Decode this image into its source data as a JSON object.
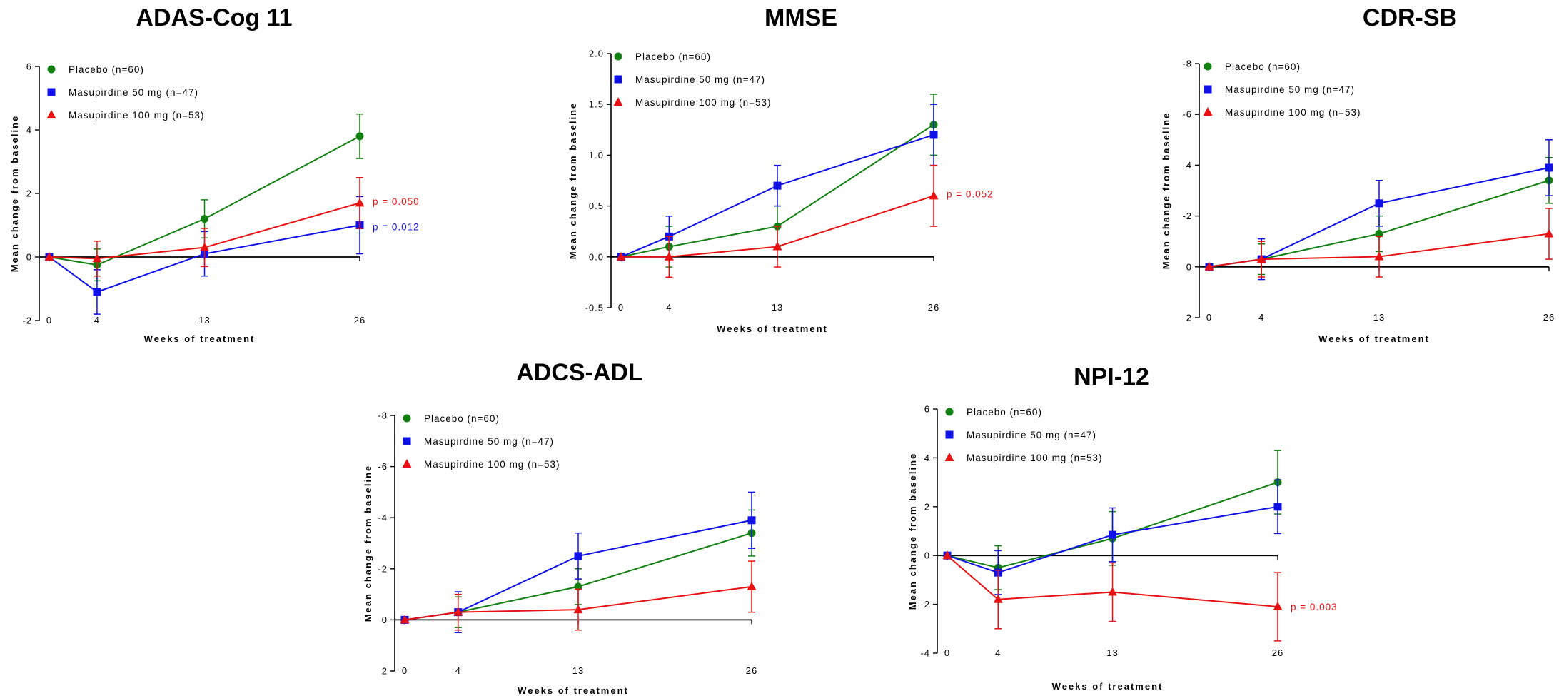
{
  "chart_data": [
    {
      "type": "line",
      "title": "ADAS-Cog 11",
      "xlabel": "Weeks of treatment",
      "ylabel": "Mean change from baseline",
      "x": [
        0,
        4,
        13,
        26
      ],
      "xticks": [
        "0",
        "4",
        "13",
        "26"
      ],
      "ylim": [
        -2,
        6
      ],
      "yticks": [
        "6",
        "4",
        "2",
        "0",
        "-2"
      ],
      "y_inverted": false,
      "legend_position": "top-left",
      "series": [
        {
          "name": "Placebo (n=60)",
          "color": "#118011",
          "marker": "circle",
          "values": [
            0,
            -0.25,
            1.2,
            3.8
          ],
          "err": [
            0,
            0.5,
            0.6,
            0.7
          ]
        },
        {
          "name": "Masupirdine 50 mg (n=47)",
          "color": "#1010e8",
          "marker": "square",
          "values": [
            0,
            -1.1,
            0.1,
            1.0
          ],
          "err": [
            0,
            0.7,
            0.7,
            0.9
          ]
        },
        {
          "name": "Masupirdine 100 mg (n=53)",
          "color": "#e81010",
          "marker": "triangle",
          "values": [
            0,
            -0.05,
            0.3,
            1.7
          ],
          "err": [
            0,
            0.55,
            0.6,
            0.8
          ]
        }
      ],
      "annotations": [
        {
          "text": "p = 0.050",
          "color": "#e81010",
          "x": 26,
          "y": 1.75
        },
        {
          "text": "p = 0.012",
          "color": "#1010e8",
          "x": 26,
          "y": 0.95
        }
      ]
    },
    {
      "type": "line",
      "title": "MMSE",
      "xlabel": "Weeks of treatment",
      "ylabel": "Mean change from baseline",
      "x": [
        0,
        4,
        13,
        26
      ],
      "xticks": [
        "0",
        "4",
        "13",
        "26"
      ],
      "ylim": [
        -0.5,
        2.0
      ],
      "yticks": [
        "2.0",
        "1.5",
        "1.0",
        "0.5",
        "0.0",
        "-0.5"
      ],
      "y_inverted": false,
      "legend_position": "top-left",
      "series": [
        {
          "name": "Placebo (n=60)",
          "color": "#118011",
          "marker": "circle",
          "values": [
            0,
            0.1,
            0.3,
            1.3
          ],
          "err": [
            0,
            0.2,
            0.2,
            0.3
          ]
        },
        {
          "name": "Masupirdine 50 mg (n=47)",
          "color": "#1010e8",
          "marker": "square",
          "values": [
            0,
            0.2,
            0.7,
            1.2
          ],
          "err": [
            0,
            0.2,
            0.2,
            0.3
          ]
        },
        {
          "name": "Masupirdine 100 mg (n=53)",
          "color": "#e81010",
          "marker": "triangle",
          "values": [
            0,
            0.0,
            0.1,
            0.6
          ],
          "err": [
            0,
            0.2,
            0.2,
            0.3
          ]
        }
      ],
      "annotations": [
        {
          "text": "p = 0.052",
          "color": "#e81010",
          "x": 26,
          "y": 0.62
        }
      ]
    },
    {
      "type": "line",
      "title": "CDR-SB",
      "xlabel": "Weeks of treatment",
      "ylabel": "Mean change from baseline",
      "x": [
        0,
        4,
        13,
        26
      ],
      "xticks": [
        "0",
        "4",
        "13",
        "26"
      ],
      "ylim": [
        2,
        -8
      ],
      "yticks": [
        "-8",
        "-6",
        "-4",
        "-2",
        "0",
        "2"
      ],
      "y_inverted": true,
      "legend_position": "top-left",
      "series": [
        {
          "name": "Placebo (n=60)",
          "color": "#118011",
          "marker": "circle",
          "values": [
            0,
            -0.3,
            -1.3,
            -3.4
          ],
          "err": [
            0,
            0.6,
            0.7,
            0.9
          ]
        },
        {
          "name": "Masupirdine 50 mg (n=47)",
          "color": "#1010e8",
          "marker": "square",
          "values": [
            0,
            -0.3,
            -2.5,
            -3.9
          ],
          "err": [
            0,
            0.8,
            0.9,
            1.1
          ]
        },
        {
          "name": "Masupirdine 100 mg (n=53)",
          "color": "#e81010",
          "marker": "triangle",
          "values": [
            0,
            -0.3,
            -0.4,
            -1.3
          ],
          "err": [
            0,
            0.7,
            0.8,
            1.0
          ]
        }
      ],
      "annotations": []
    },
    {
      "type": "line",
      "title": "ADCS-ADL",
      "xlabel": "Weeks of treatment",
      "ylabel": "Mean change from baseline",
      "x": [
        0,
        4,
        13,
        26
      ],
      "xticks": [
        "0",
        "4",
        "13",
        "26"
      ],
      "ylim": [
        2,
        -8
      ],
      "yticks": [
        "-8",
        "-6",
        "-4",
        "-2",
        "0",
        "2"
      ],
      "y_inverted": true,
      "legend_position": "top-left",
      "series": [
        {
          "name": "Placebo (n=60)",
          "color": "#118011",
          "marker": "circle",
          "values": [
            0,
            -0.3,
            -1.3,
            -3.4
          ],
          "err": [
            0,
            0.6,
            0.7,
            0.9
          ]
        },
        {
          "name": "Masupirdine 50 mg (n=47)",
          "color": "#1010e8",
          "marker": "square",
          "values": [
            0,
            -0.3,
            -2.5,
            -3.9
          ],
          "err": [
            0,
            0.8,
            0.9,
            1.1
          ]
        },
        {
          "name": "Masupirdine 100 mg (n=53)",
          "color": "#e81010",
          "marker": "triangle",
          "values": [
            0,
            -0.3,
            -0.4,
            -1.3
          ],
          "err": [
            0,
            0.7,
            0.8,
            1.0
          ]
        }
      ],
      "annotations": []
    },
    {
      "type": "line",
      "title": "NPI-12",
      "xlabel": "Weeks of treatment",
      "ylabel": "Mean change from baseline",
      "x": [
        0,
        4,
        13,
        26
      ],
      "xticks": [
        "0",
        "4",
        "13",
        "26"
      ],
      "ylim": [
        -4,
        6
      ],
      "yticks": [
        "6",
        "4",
        "2",
        "0",
        "-2",
        "-4"
      ],
      "y_inverted": false,
      "legend_position": "top-left",
      "series": [
        {
          "name": "Placebo (n=60)",
          "color": "#118011",
          "marker": "circle",
          "values": [
            0,
            -0.5,
            0.7,
            3.0
          ],
          "err": [
            0,
            0.9,
            1.1,
            1.3
          ]
        },
        {
          "name": "Masupirdine 50 mg (n=47)",
          "color": "#1010e8",
          "marker": "square",
          "values": [
            0,
            -0.7,
            0.85,
            2.0
          ],
          "err": [
            0,
            0.9,
            1.1,
            1.1
          ]
        },
        {
          "name": "Masupirdine 100 mg (n=53)",
          "color": "#e81010",
          "marker": "triangle",
          "values": [
            0,
            -1.8,
            -1.5,
            -2.1
          ],
          "err": [
            0,
            1.2,
            1.2,
            1.4
          ]
        }
      ],
      "annotations": [
        {
          "text": "p = 0.003",
          "color": "#e81010",
          "x": 26,
          "y": -2.1
        }
      ]
    }
  ]
}
